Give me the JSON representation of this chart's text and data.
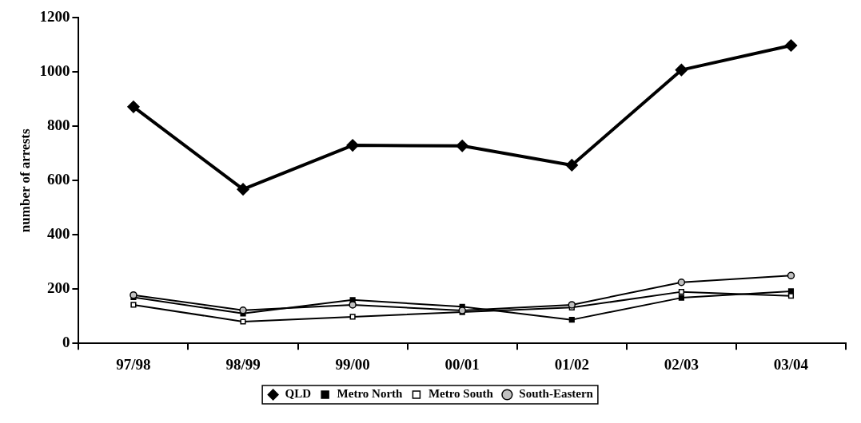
{
  "chart_data": {
    "type": "line",
    "ylabel": "number of arrests",
    "categories": [
      "97/98",
      "98/99",
      "99/00",
      "00/01",
      "01/02",
      "02/03",
      "03/04"
    ],
    "series": [
      {
        "name": "QLD",
        "color": "#000000",
        "marker": "diamond",
        "values": [
          872,
          568,
          730,
          728,
          657,
          1008,
          1098
        ]
      },
      {
        "name": "Metro North",
        "color": "#000000",
        "marker": "square",
        "values": [
          170,
          110,
          160,
          135,
          87,
          168,
          192
        ]
      },
      {
        "name": "Metro South",
        "color": "#000000",
        "marker": "square",
        "values": [
          142,
          80,
          98,
          115,
          132,
          190,
          175
        ]
      },
      {
        "name": "South-Eastern",
        "color": "#000000",
        "marker": "circle",
        "values": [
          178,
          122,
          142,
          121,
          142,
          225,
          250
        ]
      }
    ],
    "ylim": [
      0,
      1200
    ],
    "yticks": [
      0,
      200,
      400,
      600,
      800,
      1000,
      1200
    ],
    "grid": false,
    "legend": "bottom",
    "line_style": "solid"
  }
}
